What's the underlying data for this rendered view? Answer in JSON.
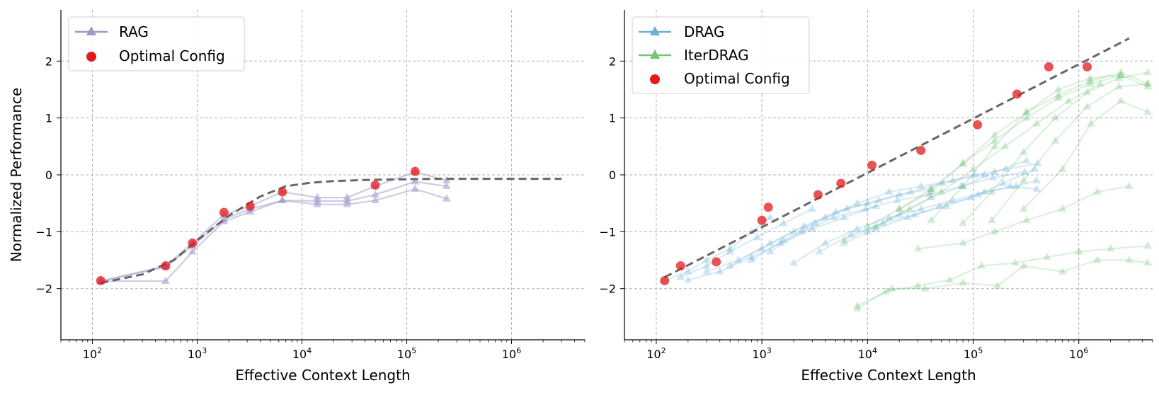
{
  "chart_data": [
    {
      "type": "line",
      "xlabel": "Effective Context Length",
      "ylabel": "Normalized Performance",
      "xscale": "log",
      "xlim": [
        50,
        5000000
      ],
      "ylim": [
        -2.9,
        2.9
      ],
      "xticks": [
        100,
        1000,
        10000,
        100000,
        1000000
      ],
      "xtick_labels": [
        {
          "base": "10",
          "exp": "2"
        },
        {
          "base": "10",
          "exp": "3"
        },
        {
          "base": "10",
          "exp": "4"
        },
        {
          "base": "10",
          "exp": "5"
        },
        {
          "base": "10",
          "exp": "6"
        }
      ],
      "yticks": [
        -2,
        -1,
        0,
        1,
        2
      ],
      "ytick_labels": [
        "−2",
        "−1",
        "0",
        "1",
        "2"
      ],
      "grid": true,
      "legend_position": "top-left",
      "legend": [
        {
          "label": "RAG",
          "kind": "line-triangle",
          "color": "#9e9ac8"
        },
        {
          "label": "Optimal Config",
          "kind": "dot",
          "color": "#e31a1c"
        }
      ],
      "series": [
        {
          "name": "RAG",
          "color": "#9e9ac8",
          "x": [
            120,
            500,
            900,
            1800,
            3200,
            6500,
            14000,
            27000,
            50000,
            120000,
            240000
          ],
          "y": [
            -1.87,
            -1.6,
            -1.2,
            -0.7,
            -0.55,
            -0.3,
            -0.4,
            -0.4,
            -0.2,
            0.05,
            -0.1
          ]
        },
        {
          "name": "RAG",
          "color": "#9e9ac8",
          "x": [
            120,
            500,
            900,
            1800,
            3200,
            6500,
            14000,
            27000,
            50000,
            120000,
            240000
          ],
          "y": [
            -1.87,
            -1.87,
            -1.35,
            -0.82,
            -0.65,
            -0.45,
            -0.52,
            -0.52,
            -0.45,
            -0.25,
            -0.42
          ]
        },
        {
          "name": "RAG",
          "color": "#9e9ac8",
          "x": [
            120,
            500,
            900,
            1800,
            3200,
            6500,
            14000,
            27000,
            50000,
            120000,
            240000
          ],
          "y": [
            -1.87,
            -1.62,
            -1.25,
            -0.78,
            -0.6,
            -0.45,
            -0.46,
            -0.46,
            -0.35,
            -0.12,
            -0.2
          ]
        }
      ],
      "optimal_config": {
        "x": [
          120,
          500,
          900,
          1800,
          3200,
          6500,
          50000,
          120000
        ],
        "y": [
          -1.86,
          -1.6,
          -1.2,
          -0.66,
          -0.55,
          -0.3,
          -0.18,
          0.06
        ]
      },
      "trend": {
        "x": [
          120,
          300,
          600,
          1000,
          2000,
          4000,
          7000,
          12000,
          20000,
          40000,
          80000,
          200000,
          600000,
          3000000
        ],
        "y": [
          -1.9,
          -1.75,
          -1.5,
          -1.15,
          -0.72,
          -0.38,
          -0.2,
          -0.14,
          -0.11,
          -0.09,
          -0.08,
          -0.07,
          -0.07,
          -0.07
        ]
      }
    },
    {
      "type": "line",
      "xlabel": "Effective Context Length",
      "ylabel": "",
      "xscale": "log",
      "xlim": [
        50,
        5000000
      ],
      "ylim": [
        -2.9,
        2.9
      ],
      "xticks": [
        100,
        1000,
        10000,
        100000,
        1000000
      ],
      "xtick_labels": [
        {
          "base": "10",
          "exp": "2"
        },
        {
          "base": "10",
          "exp": "3"
        },
        {
          "base": "10",
          "exp": "4"
        },
        {
          "base": "10",
          "exp": "5"
        },
        {
          "base": "10",
          "exp": "6"
        }
      ],
      "yticks": [
        -2,
        -1,
        0,
        1,
        2
      ],
      "ytick_labels": [
        "−2",
        "−1",
        "0",
        "1",
        "2"
      ],
      "grid": true,
      "legend_position": "top-left",
      "legend": [
        {
          "label": "DRAG",
          "kind": "line-triangle",
          "color": "#6baed6"
        },
        {
          "label": "IterDRAG",
          "kind": "line-triangle",
          "color": "#74c476"
        },
        {
          "label": "Optimal Config",
          "kind": "dot",
          "color": "#e31a1c"
        }
      ],
      "series": [
        {
          "name": "DRAG",
          "color": "#6baed6",
          "x": [
            120,
            200,
            300,
            500,
            800,
            1200
          ],
          "y": [
            -1.85,
            -1.7,
            -1.5,
            -1.3,
            -1.0,
            -0.75
          ]
        },
        {
          "name": "DRAG",
          "color": "#6baed6",
          "x": [
            170,
            300,
            500,
            900,
            1600,
            3000
          ],
          "y": [
            -1.8,
            -1.6,
            -1.35,
            -1.1,
            -0.85,
            -0.6
          ]
        },
        {
          "name": "DRAG",
          "color": "#6baed6",
          "x": [
            200,
            400,
            800,
            1500,
            3000,
            6000,
            12000
          ],
          "y": [
            -1.85,
            -1.7,
            -1.45,
            -1.2,
            -0.95,
            -0.75,
            -0.55
          ]
        },
        {
          "name": "DRAG",
          "color": "#6baed6",
          "x": [
            300,
            600,
            1200,
            2500,
            5000,
            10000,
            20000,
            40000
          ],
          "y": [
            -1.7,
            -1.5,
            -1.2,
            -0.9,
            -0.65,
            -0.5,
            -0.35,
            -0.25
          ]
        },
        {
          "name": "DRAG",
          "color": "#6baed6",
          "x": [
            500,
            1000,
            2000,
            4000,
            8000,
            16000,
            32000,
            64000,
            128000
          ],
          "y": [
            -1.6,
            -1.3,
            -1.0,
            -0.75,
            -0.5,
            -0.3,
            -0.2,
            -0.1,
            0.0
          ]
        },
        {
          "name": "DRAG",
          "color": "#6baed6",
          "x": [
            800,
            1600,
            3200,
            6400,
            12800,
            25600,
            51200,
            102400,
            204800,
            409600
          ],
          "y": [
            -1.5,
            -1.15,
            -0.85,
            -0.6,
            -0.45,
            -0.3,
            -0.15,
            0.0,
            0.1,
            0.2
          ]
        },
        {
          "name": "DRAG",
          "color": "#6baed6",
          "x": [
            1200,
            2400,
            4800,
            9600,
            19200,
            38400,
            76800,
            153600,
            307200
          ],
          "y": [
            -1.35,
            -1.0,
            -0.75,
            -0.6,
            -0.45,
            -0.35,
            -0.2,
            -0.05,
            0.05
          ]
        },
        {
          "name": "DRAG",
          "color": "#6baed6",
          "x": [
            2000,
            4000,
            8000,
            16000,
            32000,
            64000,
            128000,
            256000,
            400000
          ],
          "y": [
            -1.55,
            -1.2,
            -0.95,
            -0.75,
            -0.6,
            -0.45,
            -0.3,
            -0.2,
            -0.1
          ]
        },
        {
          "name": "DRAG",
          "color": "#6baed6",
          "x": [
            3500,
            7000,
            14000,
            28000,
            56000,
            112000,
            224000,
            400000
          ],
          "y": [
            -1.35,
            -1.05,
            -0.85,
            -0.7,
            -0.55,
            -0.35,
            -0.2,
            -0.25
          ]
        },
        {
          "name": "DRAG",
          "color": "#6baed6",
          "x": [
            6000,
            12000,
            24000,
            48000,
            96000,
            192000,
            384000
          ],
          "y": [
            -1.2,
            -0.95,
            -0.75,
            -0.55,
            -0.4,
            -0.15,
            0.1
          ]
        },
        {
          "name": "DRAG",
          "color": "#6baed6",
          "x": [
            10000,
            20000,
            40000,
            80000,
            160000,
            320000
          ],
          "y": [
            -1.0,
            -0.7,
            -0.4,
            -0.2,
            0.05,
            0.25
          ]
        },
        {
          "name": "IterDRAG",
          "color": "#74c476",
          "x": [
            8000,
            15000,
            30000,
            60000,
            120000,
            250000,
            500000,
            1000000,
            2000000,
            4500000
          ],
          "y": [
            -2.35,
            -2.05,
            -1.95,
            -1.85,
            -1.6,
            -1.55,
            -1.45,
            -1.35,
            -1.3,
            -1.25
          ]
        },
        {
          "name": "IterDRAG",
          "color": "#74c476",
          "x": [
            8000,
            17000,
            35000,
            80000,
            170000,
            300000,
            700000,
            1500000,
            3000000,
            4500000
          ],
          "y": [
            -2.3,
            -2.0,
            -2.0,
            -1.9,
            -1.95,
            -1.6,
            -1.7,
            -1.5,
            -1.5,
            -1.55
          ]
        },
        {
          "name": "IterDRAG",
          "color": "#74c476",
          "x": [
            30000,
            80000,
            160000,
            320000,
            700000,
            1500000,
            3000000
          ],
          "y": [
            -1.3,
            -1.2,
            -1.0,
            -0.8,
            -0.6,
            -0.3,
            -0.2
          ]
        },
        {
          "name": "IterDRAG",
          "color": "#74c476",
          "x": [
            6000,
            12000,
            25000,
            50000,
            100000,
            200000,
            400000,
            800000,
            1600000
          ],
          "y": [
            -1.15,
            -0.9,
            -0.6,
            -0.3,
            0.1,
            0.5,
            0.9,
            1.3,
            1.6
          ]
        },
        {
          "name": "IterDRAG",
          "color": "#74c476",
          "x": [
            10000,
            20000,
            40000,
            80000,
            160000,
            320000,
            640000,
            1280000,
            2500000
          ],
          "y": [
            -0.9,
            -0.6,
            -0.25,
            0.2,
            0.6,
            1.0,
            1.35,
            1.6,
            1.75
          ]
        },
        {
          "name": "IterDRAG",
          "color": "#74c476",
          "x": [
            20000,
            40000,
            80000,
            160000,
            320000,
            640000,
            1280000,
            2500000,
            4500000
          ],
          "y": [
            -0.6,
            -0.3,
            0.2,
            0.7,
            1.1,
            1.4,
            1.65,
            1.8,
            1.6
          ]
        },
        {
          "name": "IterDRAG",
          "color": "#74c476",
          "x": [
            40000,
            80000,
            160000,
            320000,
            640000,
            1280000,
            2500000,
            4500000
          ],
          "y": [
            -0.8,
            -0.2,
            0.5,
            1.1,
            1.5,
            1.7,
            1.75,
            1.55
          ]
        },
        {
          "name": "IterDRAG",
          "color": "#74c476",
          "x": [
            80000,
            150000,
            300000,
            600000,
            1200000,
            2400000,
            4500000
          ],
          "y": [
            -0.85,
            -0.3,
            0.4,
            1.0,
            1.45,
            1.7,
            1.8
          ]
        },
        {
          "name": "IterDRAG",
          "color": "#74c476",
          "x": [
            150000,
            300000,
            600000,
            1200000,
            2400000,
            4500000
          ],
          "y": [
            -0.8,
            -0.1,
            0.6,
            1.2,
            1.55,
            1.6
          ]
        },
        {
          "name": "IterDRAG",
          "color": "#74c476",
          "x": [
            300000,
            700000,
            1300000,
            2500000,
            4500000
          ],
          "y": [
            -0.6,
            0.1,
            0.9,
            1.3,
            1.1
          ]
        }
      ],
      "optimal_config": {
        "x": [
          120,
          170,
          370,
          1000,
          1150,
          3400,
          5600,
          11000,
          32000,
          110000,
          260000,
          520000,
          1200000
        ],
        "y": [
          -1.86,
          -1.6,
          -1.53,
          -0.8,
          -0.57,
          -0.35,
          -0.15,
          0.17,
          0.43,
          0.88,
          1.42,
          1.9,
          1.9
        ]
      },
      "trend": {
        "x": [
          120,
          3000000
        ],
        "y": [
          -1.8,
          2.4
        ]
      }
    }
  ]
}
